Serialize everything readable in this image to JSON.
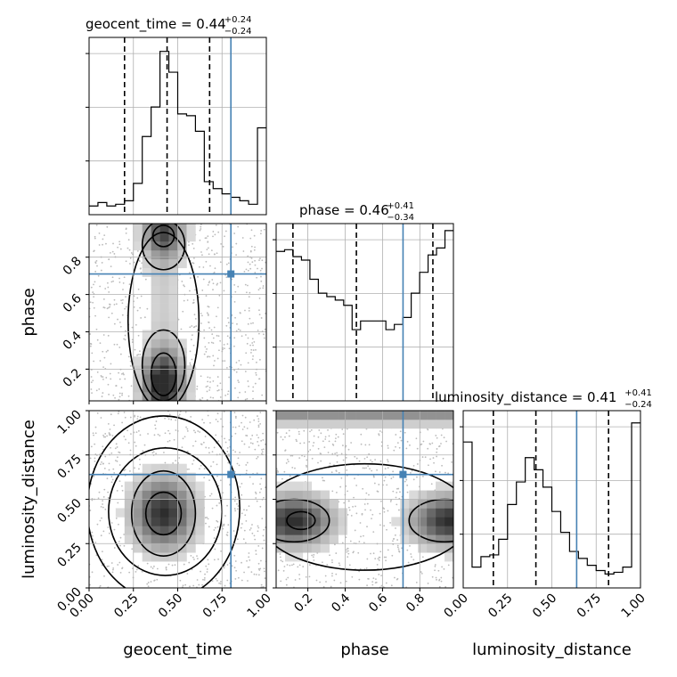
{
  "chart_data": {
    "type": "corner",
    "parameters": [
      "geocent_time",
      "phase",
      "luminosity_distance"
    ],
    "ranges": {
      "geocent_time": [
        0,
        1
      ],
      "phase": [
        0.03,
        0.98
      ],
      "luminosity_distance": [
        0,
        1
      ]
    },
    "ticks": {
      "geocent_time": [
        "0.00",
        "0.25",
        "0.50",
        "0.75",
        "1.00"
      ],
      "phase": [
        "0.2",
        "0.4",
        "0.6",
        "0.8"
      ],
      "luminosity_distance": [
        "0.00",
        "0.25",
        "0.50",
        "0.75",
        "1.00"
      ]
    },
    "tick_values": {
      "geocent_time": [
        0,
        0.25,
        0.5,
        0.75,
        1.0
      ],
      "phase": [
        0.2,
        0.4,
        0.6,
        0.8
      ],
      "luminosity_distance": [
        0,
        0.25,
        0.5,
        0.75,
        1.0
      ]
    },
    "titles": [
      {
        "param": "geocent_time",
        "text": "geocent_time = 0.44",
        "plus": "+0.24",
        "minus": "−0.24"
      },
      {
        "param": "phase",
        "text": "phase = 0.46",
        "plus": "+0.41",
        "minus": "−0.34"
      },
      {
        "param": "luminosity_distance",
        "text": "luminosity_distance = 0.41",
        "plus": "+0.41",
        "minus": "−0.24"
      }
    ],
    "truths": {
      "geocent_time": 0.8,
      "phase": 0.71,
      "luminosity_distance": 0.64
    },
    "quantiles": {
      "geocent_time": [
        0.2,
        0.44,
        0.68
      ],
      "phase": [
        0.12,
        0.46,
        0.87
      ],
      "luminosity_distance": [
        0.17,
        0.41,
        0.82
      ]
    },
    "histograms": {
      "geocent_time": [
        0.05,
        0.07,
        0.05,
        0.06,
        0.08,
        0.18,
        0.45,
        0.62,
        0.94,
        0.82,
        0.58,
        0.57,
        0.48,
        0.19,
        0.15,
        0.12,
        0.1,
        0.08,
        0.06,
        0.5
      ],
      "phase": [
        0.86,
        0.87,
        0.83,
        0.81,
        0.7,
        0.62,
        0.6,
        0.58,
        0.55,
        0.41,
        0.46,
        0.46,
        0.46,
        0.41,
        0.44,
        0.48,
        0.62,
        0.74,
        0.84,
        0.88,
        0.98
      ],
      "luminosity_distance": [
        0.84,
        0.12,
        0.18,
        0.19,
        0.28,
        0.48,
        0.61,
        0.75,
        0.68,
        0.58,
        0.44,
        0.32,
        0.21,
        0.17,
        0.13,
        0.1,
        0.08,
        0.09,
        0.12,
        0.95
      ]
    },
    "xlabels": [
      "geocent_time",
      "phase",
      "luminosity_distance"
    ],
    "ylabels": [
      "phase",
      "luminosity_distance"
    ]
  }
}
